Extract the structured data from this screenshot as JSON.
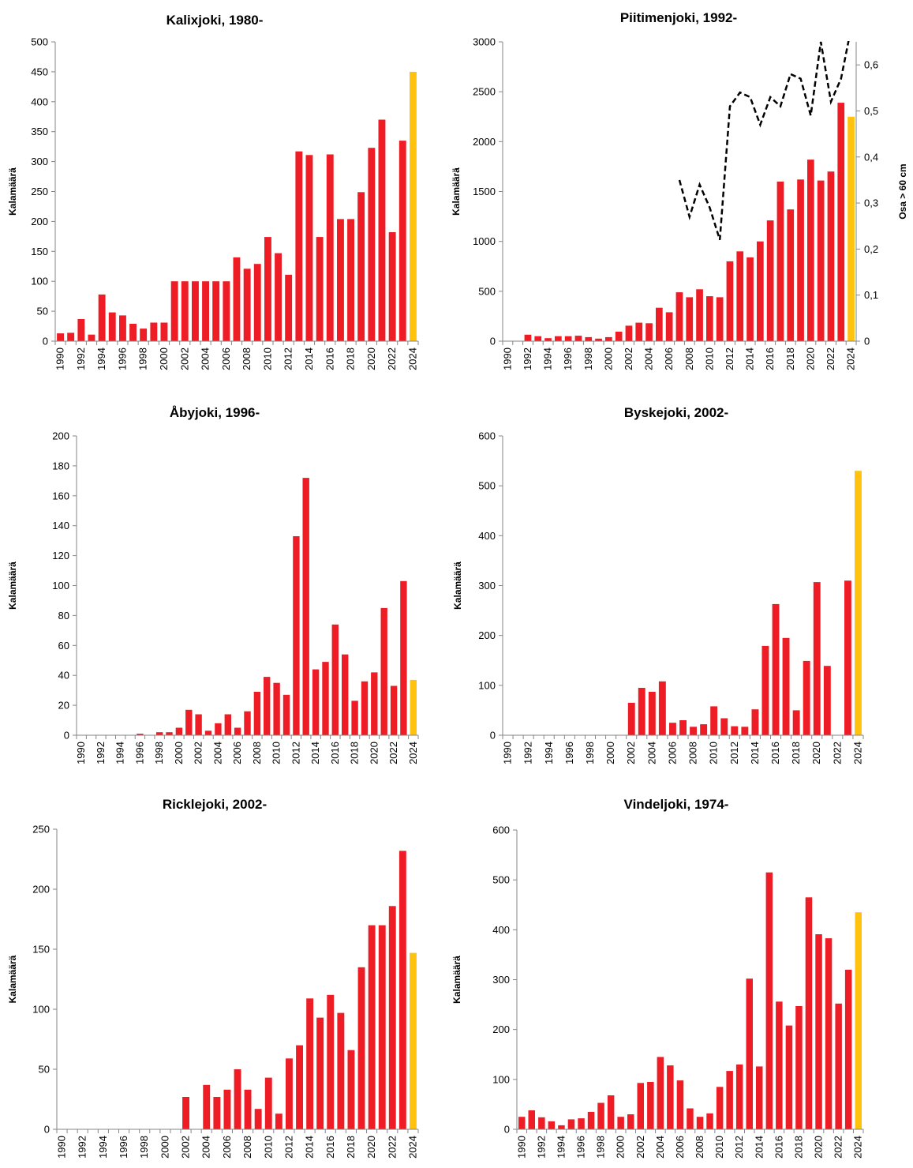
{
  "colors": {
    "bar": "#ee1c25",
    "highlight": "#ffc20e",
    "axis": "#868686",
    "ratio_line": "#000000"
  },
  "chart_data": [
    {
      "type": "bar",
      "title": "Kalixjoki, 1980-",
      "ylabel": "Kalamäärä",
      "ylim": [
        0,
        500
      ],
      "yticks": [
        0,
        50,
        100,
        150,
        200,
        250,
        300,
        350,
        400,
        450,
        500
      ],
      "years": [
        1990,
        1991,
        1992,
        1993,
        1994,
        1995,
        1996,
        1997,
        1998,
        1999,
        2000,
        2001,
        2002,
        2003,
        2004,
        2005,
        2006,
        2007,
        2008,
        2009,
        2010,
        2011,
        2012,
        2013,
        2014,
        2015,
        2016,
        2017,
        2018,
        2019,
        2020,
        2021,
        2022,
        2023,
        2024
      ],
      "xtick_labels": [
        "1990",
        "1992",
        "1994",
        "1996",
        "1998",
        "2000",
        "2002",
        "2004",
        "2006",
        "2008",
        "2010",
        "2012",
        "2014",
        "2016",
        "2018",
        "2020",
        "2022",
        "2024"
      ],
      "values": [
        13,
        14,
        37,
        11,
        78,
        48,
        43,
        29,
        21,
        31,
        31,
        100,
        100,
        100,
        100,
        100,
        100,
        140,
        121,
        129,
        174,
        147,
        111,
        317,
        311,
        174,
        312,
        204,
        204,
        249,
        323,
        370,
        182,
        335,
        450
      ],
      "highlight_year": 2024,
      "grid": false
    },
    {
      "type": "bar",
      "title": "Piitimenjoki, 1992-",
      "ylabel": "Kalamäärä",
      "ylabel2": "Osa > 60 cm",
      "ylim": [
        0,
        3000
      ],
      "yticks": [
        0,
        500,
        1000,
        1500,
        2000,
        2500,
        3000
      ],
      "y2lim": [
        0,
        0.65
      ],
      "y2ticks": [
        "0",
        "0,1",
        "0,2",
        "0,3",
        "0,4",
        "0,5",
        "0,6"
      ],
      "years": [
        1990,
        1991,
        1992,
        1993,
        1994,
        1995,
        1996,
        1997,
        1998,
        1999,
        2000,
        2001,
        2002,
        2003,
        2004,
        2005,
        2006,
        2007,
        2008,
        2009,
        2010,
        2011,
        2012,
        2013,
        2014,
        2015,
        2016,
        2017,
        2018,
        2019,
        2020,
        2021,
        2022,
        2023,
        2024
      ],
      "xtick_labels": [
        "1990",
        "1992",
        "1994",
        "1996",
        "1998",
        "2000",
        "2002",
        "2004",
        "2006",
        "2008",
        "2010",
        "2012",
        "2014",
        "2016",
        "2018",
        "2020",
        "2022",
        "2024"
      ],
      "values": [
        0,
        0,
        65,
        50,
        30,
        50,
        50,
        55,
        40,
        25,
        40,
        95,
        155,
        185,
        180,
        335,
        290,
        490,
        440,
        520,
        450,
        440,
        800,
        900,
        840,
        1000,
        1210,
        1600,
        1320,
        1620,
        1820,
        1610,
        1700,
        2390,
        2250
      ],
      "highlight_year": 2024,
      "series2": {
        "style": "dashed",
        "years": [
          2007,
          2008,
          2009,
          2010,
          2011,
          2012,
          2013,
          2014,
          2015,
          2016,
          2017,
          2018,
          2019,
          2020,
          2021,
          2022,
          2023,
          2024
        ],
        "values": [
          0.35,
          0.27,
          0.34,
          0.29,
          0.22,
          0.51,
          0.54,
          0.53,
          0.47,
          0.53,
          0.51,
          0.58,
          0.57,
          0.49,
          0.65,
          0.52,
          0.57,
          0.68
        ]
      },
      "grid": false
    },
    {
      "type": "bar",
      "title": "Åbyjoki, 1996-",
      "ylabel": "Kalamäärä",
      "ylim": [
        0,
        200
      ],
      "yticks": [
        0,
        20,
        40,
        60,
        80,
        100,
        120,
        140,
        160,
        180,
        200
      ],
      "years": [
        1990,
        1991,
        1992,
        1993,
        1994,
        1995,
        1996,
        1997,
        1998,
        1999,
        2000,
        2001,
        2002,
        2003,
        2004,
        2005,
        2006,
        2007,
        2008,
        2009,
        2010,
        2011,
        2012,
        2013,
        2014,
        2015,
        2016,
        2017,
        2018,
        2019,
        2020,
        2021,
        2022,
        2023,
        2024
      ],
      "xtick_labels": [
        "1990",
        "1992",
        "1994",
        "1996",
        "1998",
        "2000",
        "2002",
        "2004",
        "2006",
        "2008",
        "2010",
        "2012",
        "2014",
        "2016",
        "2018",
        "2020",
        "2022",
        "2024"
      ],
      "values": [
        0,
        0,
        0,
        0,
        0,
        0,
        1,
        0,
        2,
        2,
        5,
        17,
        14,
        3,
        8,
        14,
        5,
        16,
        29,
        39,
        35,
        27,
        133,
        172,
        44,
        49,
        74,
        54,
        23,
        36,
        42,
        85,
        33,
        103,
        37
      ],
      "highlight_year": 2024,
      "grid": false
    },
    {
      "type": "bar",
      "title": "Byskejoki, 2002-",
      "ylabel": "Kalamäärä",
      "ylim": [
        0,
        600
      ],
      "yticks": [
        0,
        100,
        200,
        300,
        400,
        500,
        600
      ],
      "years": [
        1990,
        1991,
        1992,
        1993,
        1994,
        1995,
        1996,
        1997,
        1998,
        1999,
        2000,
        2001,
        2002,
        2003,
        2004,
        2005,
        2006,
        2007,
        2008,
        2009,
        2010,
        2011,
        2012,
        2013,
        2014,
        2015,
        2016,
        2017,
        2018,
        2019,
        2020,
        2021,
        2022,
        2023,
        2024
      ],
      "xtick_labels": [
        "1990",
        "1992",
        "1994",
        "1996",
        "1998",
        "2000",
        "2002",
        "2004",
        "2006",
        "2008",
        "2010",
        "2012",
        "2014",
        "2016",
        "2018",
        "2020",
        "2022",
        "2024"
      ],
      "values": [
        0,
        0,
        0,
        0,
        0,
        0,
        0,
        0,
        0,
        0,
        0,
        0,
        65,
        95,
        87,
        108,
        25,
        30,
        17,
        22,
        58,
        34,
        18,
        17,
        52,
        179,
        263,
        195,
        50,
        149,
        307,
        139,
        0,
        310,
        530
      ],
      "highlight_year": 2024,
      "grid": false
    },
    {
      "type": "bar",
      "title": "Ricklejoki, 2002-",
      "ylabel": "Kalamäärä",
      "ylim": [
        0,
        250
      ],
      "yticks": [
        0,
        50,
        100,
        150,
        200,
        250
      ],
      "years": [
        1990,
        1991,
        1992,
        1993,
        1994,
        1995,
        1996,
        1997,
        1998,
        1999,
        2000,
        2001,
        2002,
        2003,
        2004,
        2005,
        2006,
        2007,
        2008,
        2009,
        2010,
        2011,
        2012,
        2013,
        2014,
        2015,
        2016,
        2017,
        2018,
        2019,
        2020,
        2021,
        2022,
        2023,
        2024
      ],
      "xtick_labels": [
        "1990",
        "1992",
        "1994",
        "1996",
        "1998",
        "2000",
        "2002",
        "2004",
        "2006",
        "2008",
        "2010",
        "2012",
        "2014",
        "2016",
        "2018",
        "2020",
        "2022",
        "2024"
      ],
      "values": [
        0,
        0,
        0,
        0,
        0,
        0,
        0,
        0,
        0,
        0,
        0,
        0,
        27,
        0,
        37,
        27,
        33,
        50,
        33,
        17,
        43,
        13,
        59,
        70,
        109,
        93,
        112,
        97,
        66,
        135,
        170,
        170,
        186,
        232,
        147
      ],
      "highlight_year": 2024,
      "grid": false
    },
    {
      "type": "bar",
      "title": "Vindeljoki, 1974-",
      "ylabel": "Kalamäärä",
      "ylim": [
        0,
        600
      ],
      "yticks": [
        0,
        100,
        200,
        300,
        400,
        500,
        600
      ],
      "years": [
        1990,
        1991,
        1992,
        1993,
        1994,
        1995,
        1996,
        1997,
        1998,
        1999,
        2000,
        2001,
        2002,
        2003,
        2004,
        2005,
        2006,
        2007,
        2008,
        2009,
        2010,
        2011,
        2012,
        2013,
        2014,
        2015,
        2016,
        2017,
        2018,
        2019,
        2020,
        2021,
        2022,
        2023,
        2024
      ],
      "xtick_labels": [
        "1990",
        "1992",
        "1994",
        "1996",
        "1998",
        "2000",
        "2002",
        "2004",
        "2006",
        "2008",
        "2010",
        "2012",
        "2014",
        "2016",
        "2018",
        "2020",
        "2022",
        "2024"
      ],
      "values": [
        25,
        38,
        24,
        16,
        8,
        20,
        22,
        35,
        53,
        68,
        25,
        30,
        93,
        95,
        145,
        128,
        98,
        42,
        25,
        32,
        85,
        117,
        130,
        302,
        126,
        515,
        256,
        208,
        247,
        465,
        391,
        383,
        252,
        320,
        435
      ],
      "highlight_year": 2024,
      "grid": false
    }
  ]
}
